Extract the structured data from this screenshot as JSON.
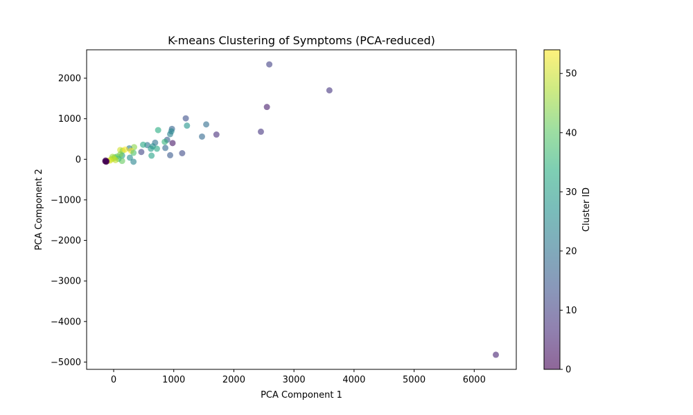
{
  "chart_data": {
    "type": "scatter",
    "title": "K-means Clustering of Symptoms (PCA-reduced)",
    "xlabel": "PCA Component 1",
    "ylabel": "PCA Component 2",
    "xlim": [
      -450,
      6700
    ],
    "ylim": [
      -5180,
      2700
    ],
    "xticks": [
      0,
      1000,
      2000,
      3000,
      4000,
      5000,
      6000
    ],
    "yticks": [
      -5000,
      -4000,
      -3000,
      -2000,
      -1000,
      0,
      1000,
      2000
    ],
    "xtick_labels": [
      "0",
      "1000",
      "2000",
      "3000",
      "4000",
      "5000",
      "6000"
    ],
    "ytick_labels": [
      "−5000",
      "−4000",
      "−3000",
      "−2000",
      "−1000",
      "0",
      "1000",
      "2000"
    ],
    "grid": false,
    "marker_alpha": 0.6,
    "colorbar": {
      "label": "Cluster ID",
      "range": [
        0,
        54
      ],
      "ticks": [
        0,
        10,
        20,
        30,
        40,
        50
      ],
      "tick_labels": [
        "0",
        "10",
        "20",
        "30",
        "40",
        "50"
      ],
      "colormap": "viridis"
    },
    "points": [
      {
        "x": 2590,
        "y": 2340,
        "c": 10
      },
      {
        "x": 3590,
        "y": 1700,
        "c": 8
      },
      {
        "x": 2550,
        "y": 1290,
        "c": 4
      },
      {
        "x": 1200,
        "y": 1010,
        "c": 13
      },
      {
        "x": 1540,
        "y": 860,
        "c": 19
      },
      {
        "x": 1220,
        "y": 830,
        "c": 28
      },
      {
        "x": 1710,
        "y": 610,
        "c": 7
      },
      {
        "x": 2450,
        "y": 680,
        "c": 8
      },
      {
        "x": 1470,
        "y": 560,
        "c": 18
      },
      {
        "x": 970,
        "y": 750,
        "c": 17
      },
      {
        "x": 960,
        "y": 690,
        "c": 25
      },
      {
        "x": 740,
        "y": 720,
        "c": 33
      },
      {
        "x": 940,
        "y": 620,
        "c": 23
      },
      {
        "x": 890,
        "y": 480,
        "c": 16
      },
      {
        "x": 980,
        "y": 400,
        "c": 3
      },
      {
        "x": 850,
        "y": 430,
        "c": 35
      },
      {
        "x": 690,
        "y": 410,
        "c": 20
      },
      {
        "x": 650,
        "y": 320,
        "c": 26
      },
      {
        "x": 560,
        "y": 350,
        "c": 21
      },
      {
        "x": 490,
        "y": 360,
        "c": 32
      },
      {
        "x": 620,
        "y": 260,
        "c": 29
      },
      {
        "x": 720,
        "y": 260,
        "c": 32
      },
      {
        "x": 860,
        "y": 280,
        "c": 18
      },
      {
        "x": 1140,
        "y": 150,
        "c": 12
      },
      {
        "x": 940,
        "y": 100,
        "c": 15
      },
      {
        "x": 630,
        "y": 90,
        "c": 31
      },
      {
        "x": 460,
        "y": 180,
        "c": 11
      },
      {
        "x": 340,
        "y": 300,
        "c": 44
      },
      {
        "x": 260,
        "y": 270,
        "c": 22
      },
      {
        "x": 290,
        "y": 210,
        "c": 54
      },
      {
        "x": 330,
        "y": 160,
        "c": 38
      },
      {
        "x": 270,
        "y": 40,
        "c": 26
      },
      {
        "x": 330,
        "y": -60,
        "c": 24
      },
      {
        "x": 110,
        "y": 230,
        "c": 50
      },
      {
        "x": 150,
        "y": 210,
        "c": 45
      },
      {
        "x": 190,
        "y": 240,
        "c": 54
      },
      {
        "x": 140,
        "y": 90,
        "c": 30
      },
      {
        "x": 110,
        "y": 120,
        "c": 43
      },
      {
        "x": 140,
        "y": -40,
        "c": 41
      },
      {
        "x": 60,
        "y": 70,
        "c": 42
      },
      {
        "x": 80,
        "y": 10,
        "c": 37
      },
      {
        "x": 20,
        "y": 50,
        "c": 39
      },
      {
        "x": -20,
        "y": 60,
        "c": 46
      },
      {
        "x": 0,
        "y": 20,
        "c": 48
      },
      {
        "x": -40,
        "y": 0,
        "c": 47
      },
      {
        "x": 30,
        "y": -20,
        "c": 49
      },
      {
        "x": -60,
        "y": -30,
        "c": 51
      },
      {
        "x": -100,
        "y": -40,
        "c": 52
      },
      {
        "x": -130,
        "y": -50,
        "c": 53
      },
      {
        "x": -140,
        "y": -50,
        "c": 0
      },
      {
        "x": -130,
        "y": -45,
        "c": 0
      },
      {
        "x": -120,
        "y": -50,
        "c": 0
      },
      {
        "x": -135,
        "y": -30,
        "c": 1
      },
      {
        "x": -125,
        "y": -60,
        "c": 0
      },
      {
        "x": 6360,
        "y": -4820,
        "c": 5
      }
    ]
  }
}
